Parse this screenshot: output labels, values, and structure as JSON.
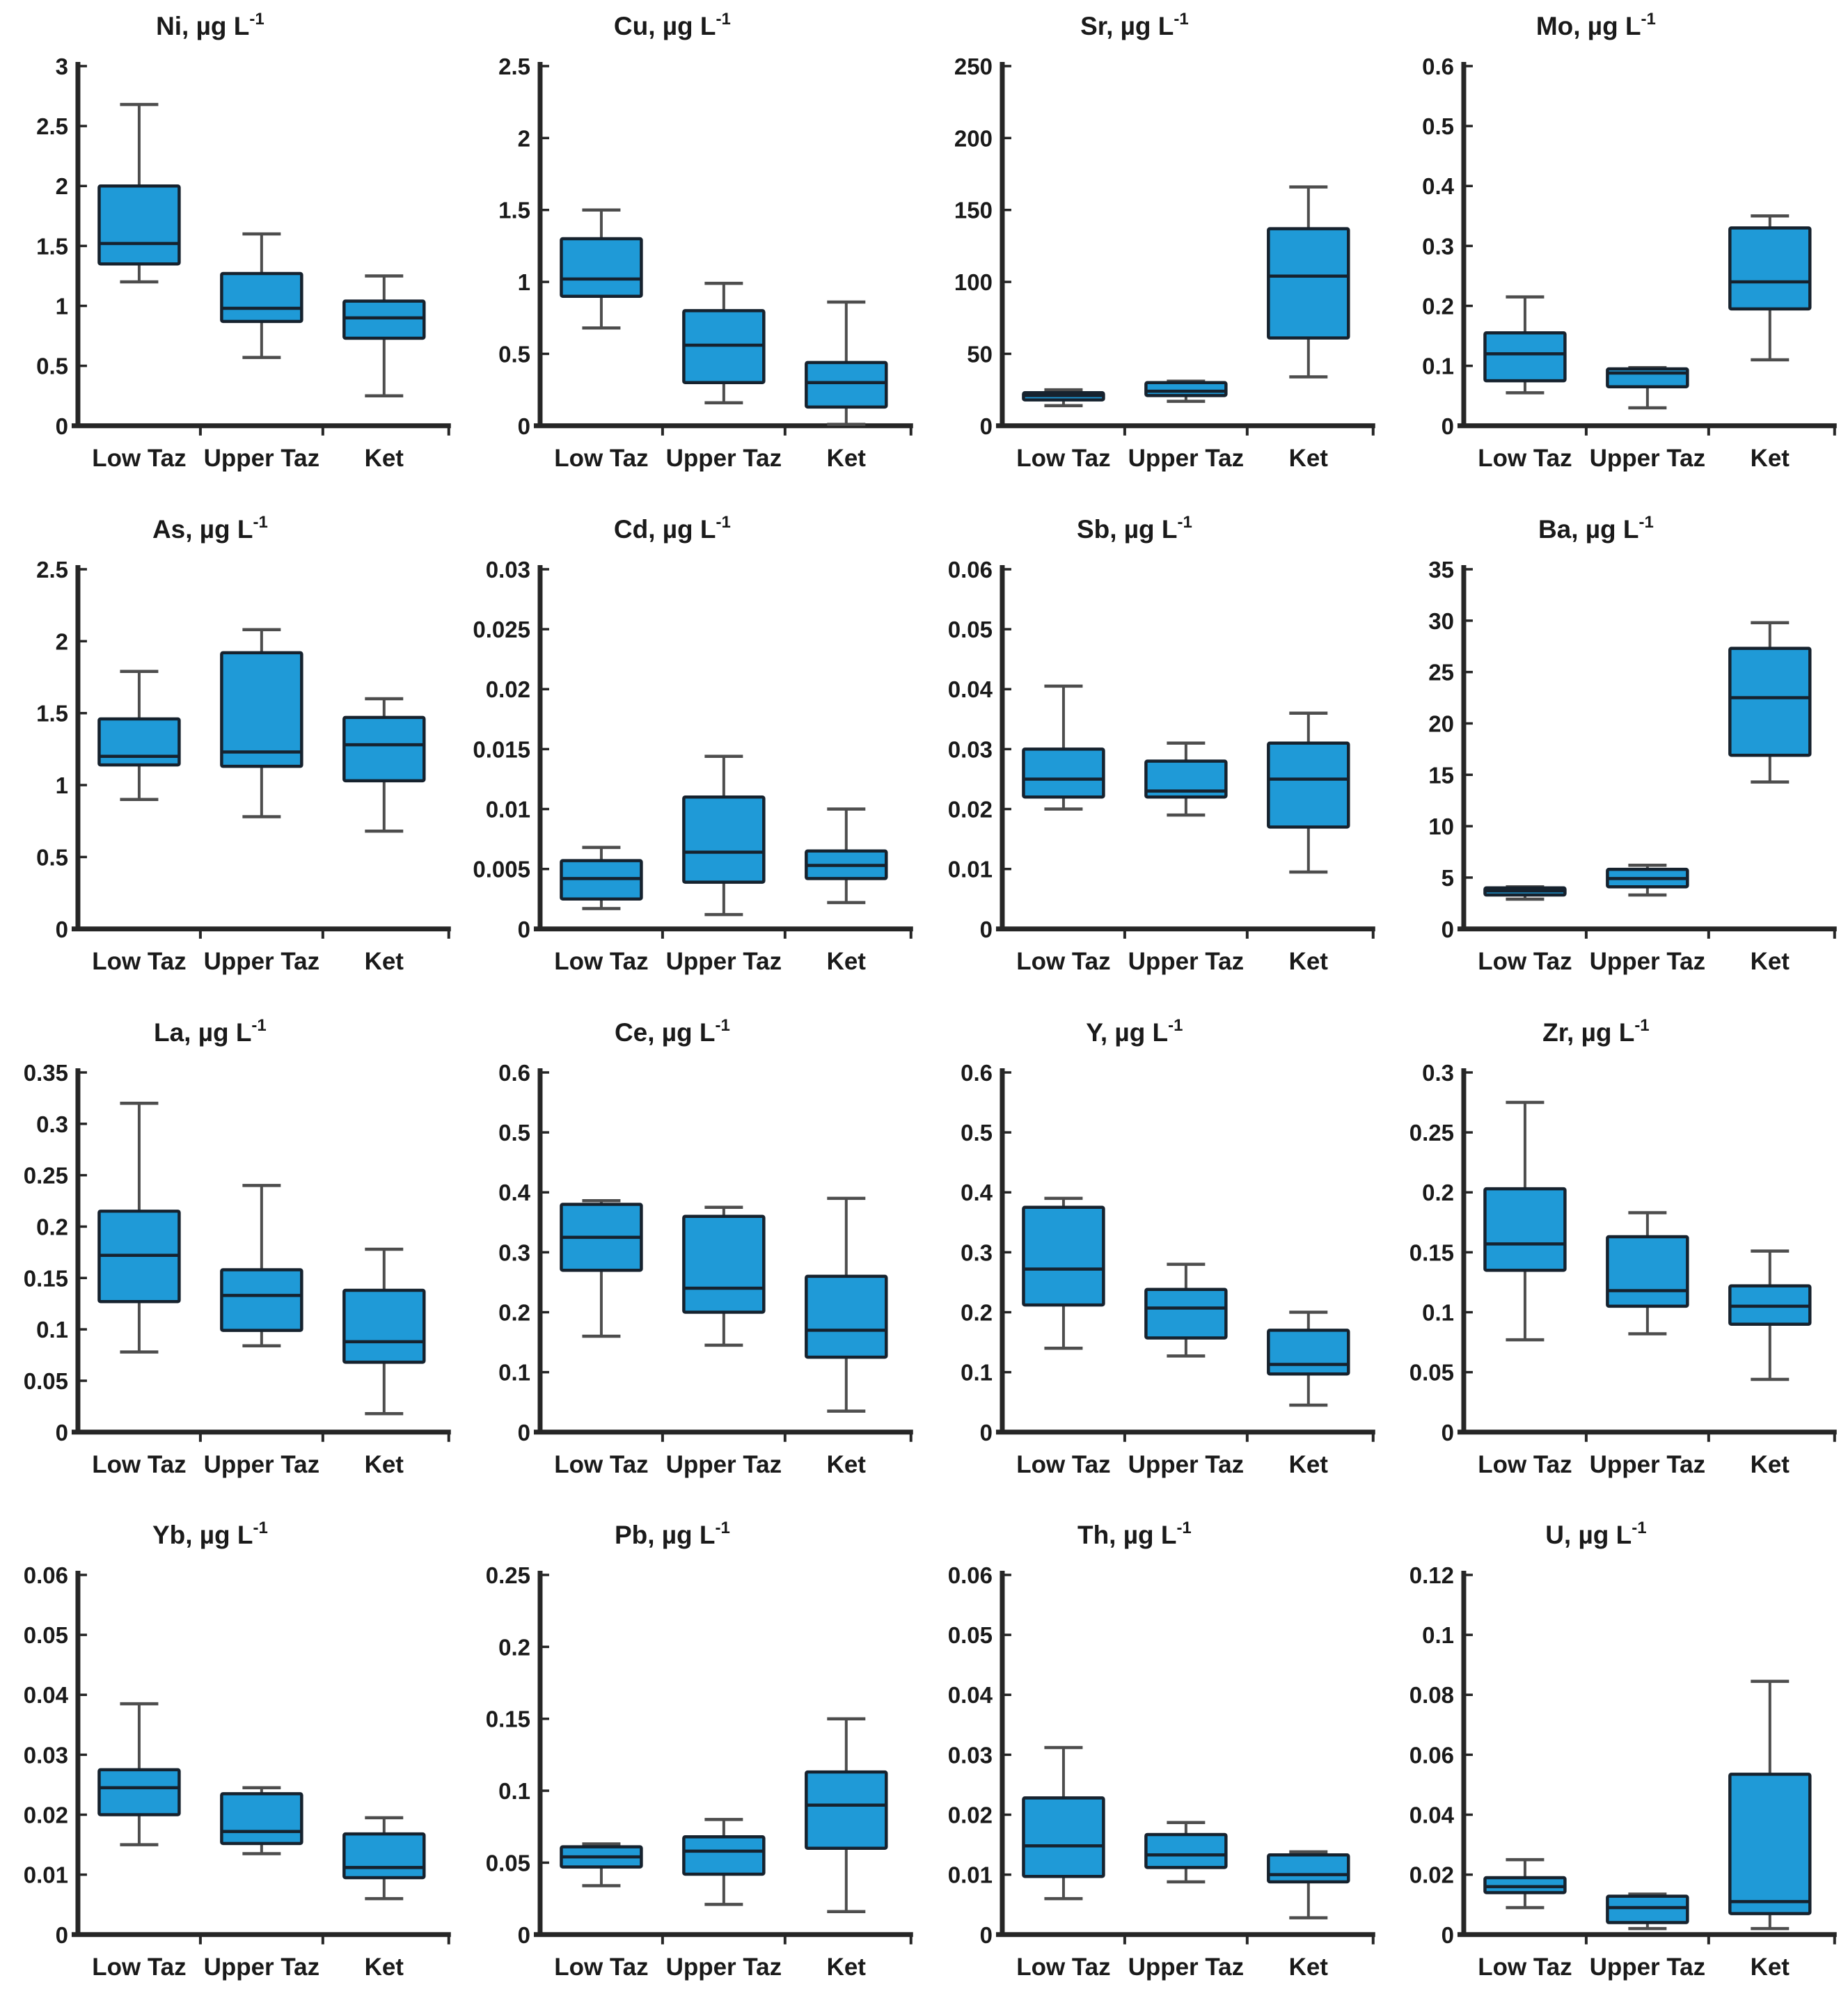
{
  "figure": {
    "description": "4x4 grid of box-and-whisker plots of trace element concentrations for three river stations",
    "unit": "µg L⁻¹",
    "categories": [
      "Low Taz",
      "Upper Taz",
      "Ket"
    ]
  },
  "style": {
    "box_fill": "#1f9ad7",
    "box_stroke": "#16222e",
    "median_stroke": "#16222e",
    "whisker_stroke": "#4d4d4d",
    "axis_stroke": "#262626",
    "text_color": "#1a1a1a",
    "background": "#ffffff"
  },
  "chart_data": [
    {
      "type": "box",
      "element": "Ni",
      "title": "Ni, µg L⁻¹",
      "title_main": "Ni, µg L",
      "title_sup": "-1",
      "categories": [
        "Low Taz",
        "Upper Taz",
        "Ket"
      ],
      "ylim": [
        0,
        3
      ],
      "yticks": [
        0,
        0.5,
        1,
        1.5,
        2,
        2.5,
        3
      ],
      "boxes": [
        {
          "category": "Low Taz",
          "whisker_low": 1.2,
          "q1": 1.35,
          "median": 1.52,
          "q3": 2.0,
          "whisker_high": 2.68
        },
        {
          "category": "Upper Taz",
          "whisker_low": 0.57,
          "q1": 0.87,
          "median": 0.98,
          "q3": 1.27,
          "whisker_high": 1.6
        },
        {
          "category": "Ket",
          "whisker_low": 0.25,
          "q1": 0.73,
          "median": 0.9,
          "q3": 1.04,
          "whisker_high": 1.25
        }
      ]
    },
    {
      "type": "box",
      "element": "Cu",
      "title": "Cu, µg L⁻¹",
      "title_main": "Cu, µg L",
      "title_sup": "-1",
      "categories": [
        "Low Taz",
        "Upper Taz",
        "Ket"
      ],
      "ylim": [
        0,
        2.5
      ],
      "yticks": [
        0,
        0.5,
        1,
        1.5,
        2,
        2.5
      ],
      "boxes": [
        {
          "category": "Low Taz",
          "whisker_low": 0.68,
          "q1": 0.9,
          "median": 1.02,
          "q3": 1.3,
          "whisker_high": 1.5
        },
        {
          "category": "Upper Taz",
          "whisker_low": 0.16,
          "q1": 0.3,
          "median": 0.56,
          "q3": 0.8,
          "whisker_high": 0.99
        },
        {
          "category": "Ket",
          "whisker_low": 0.01,
          "q1": 0.13,
          "median": 0.3,
          "q3": 0.44,
          "whisker_high": 0.86
        }
      ]
    },
    {
      "type": "box",
      "element": "Sr",
      "title": "Sr, µg L⁻¹",
      "title_main": "Sr, µg L",
      "title_sup": "-1",
      "categories": [
        "Low Taz",
        "Upper Taz",
        "Ket"
      ],
      "ylim": [
        0,
        250
      ],
      "yticks": [
        0,
        50,
        100,
        150,
        200,
        250
      ],
      "boxes": [
        {
          "category": "Low Taz",
          "whisker_low": 14,
          "q1": 18,
          "median": 21,
          "q3": 23,
          "whisker_high": 25
        },
        {
          "category": "Upper Taz",
          "whisker_low": 17,
          "q1": 21,
          "median": 24,
          "q3": 30,
          "whisker_high": 31
        },
        {
          "category": "Ket",
          "whisker_low": 34,
          "q1": 61,
          "median": 104,
          "q3": 137,
          "whisker_high": 166
        }
      ]
    },
    {
      "type": "box",
      "element": "Mo",
      "title": "Mo, µg L⁻¹",
      "title_main": "Mo, µg L",
      "title_sup": "-1",
      "categories": [
        "Low Taz",
        "Upper Taz",
        "Ket"
      ],
      "ylim": [
        0,
        0.6
      ],
      "yticks": [
        0,
        0.1,
        0.2,
        0.3,
        0.4,
        0.5,
        0.6
      ],
      "boxes": [
        {
          "category": "Low Taz",
          "whisker_low": 0.055,
          "q1": 0.075,
          "median": 0.12,
          "q3": 0.155,
          "whisker_high": 0.215
        },
        {
          "category": "Upper Taz",
          "whisker_low": 0.03,
          "q1": 0.065,
          "median": 0.088,
          "q3": 0.095,
          "whisker_high": 0.097
        },
        {
          "category": "Ket",
          "whisker_low": 0.11,
          "q1": 0.195,
          "median": 0.24,
          "q3": 0.33,
          "whisker_high": 0.35
        }
      ]
    },
    {
      "type": "box",
      "element": "As",
      "title": "As, µg L⁻¹",
      "title_main": "As, µg L",
      "title_sup": "-1",
      "categories": [
        "Low Taz",
        "Upper Taz",
        "Ket"
      ],
      "ylim": [
        0,
        2.5
      ],
      "yticks": [
        0,
        0.5,
        1,
        1.5,
        2,
        2.5
      ],
      "boxes": [
        {
          "category": "Low Taz",
          "whisker_low": 0.9,
          "q1": 1.14,
          "median": 1.2,
          "q3": 1.46,
          "whisker_high": 1.79
        },
        {
          "category": "Upper Taz",
          "whisker_low": 0.78,
          "q1": 1.13,
          "median": 1.23,
          "q3": 1.92,
          "whisker_high": 2.08
        },
        {
          "category": "Ket",
          "whisker_low": 0.68,
          "q1": 1.03,
          "median": 1.28,
          "q3": 1.47,
          "whisker_high": 1.6
        }
      ]
    },
    {
      "type": "box",
      "element": "Cd",
      "title": "Cd, µg L⁻¹",
      "title_main": "Cd, µg L",
      "title_sup": "-1",
      "categories": [
        "Low Taz",
        "Upper Taz",
        "Ket"
      ],
      "ylim": [
        0,
        0.03
      ],
      "yticks": [
        0,
        0.005,
        0.01,
        0.015,
        0.02,
        0.025,
        0.03
      ],
      "boxes": [
        {
          "category": "Low Taz",
          "whisker_low": 0.0017,
          "q1": 0.0025,
          "median": 0.0042,
          "q3": 0.0057,
          "whisker_high": 0.0068
        },
        {
          "category": "Upper Taz",
          "whisker_low": 0.0012,
          "q1": 0.0039,
          "median": 0.0064,
          "q3": 0.011,
          "whisker_high": 0.0144
        },
        {
          "category": "Ket",
          "whisker_low": 0.0022,
          "q1": 0.0042,
          "median": 0.0053,
          "q3": 0.0065,
          "whisker_high": 0.01
        }
      ]
    },
    {
      "type": "box",
      "element": "Sb",
      "title": "Sb, µg L⁻¹",
      "title_main": "Sb, µg L",
      "title_sup": "-1",
      "categories": [
        "Low Taz",
        "Upper Taz",
        "Ket"
      ],
      "ylim": [
        0,
        0.06
      ],
      "yticks": [
        0,
        0.01,
        0.02,
        0.03,
        0.04,
        0.05,
        0.06
      ],
      "boxes": [
        {
          "category": "Low Taz",
          "whisker_low": 0.02,
          "q1": 0.022,
          "median": 0.025,
          "q3": 0.03,
          "whisker_high": 0.0405
        },
        {
          "category": "Upper Taz",
          "whisker_low": 0.019,
          "q1": 0.022,
          "median": 0.023,
          "q3": 0.028,
          "whisker_high": 0.031
        },
        {
          "category": "Ket",
          "whisker_low": 0.0095,
          "q1": 0.017,
          "median": 0.025,
          "q3": 0.031,
          "whisker_high": 0.036
        }
      ]
    },
    {
      "type": "box",
      "element": "Ba",
      "title": "Ba, µg L⁻¹",
      "title_main": "Ba, µg L",
      "title_sup": "-1",
      "categories": [
        "Low Taz",
        "Upper Taz",
        "Ket"
      ],
      "ylim": [
        0,
        35
      ],
      "yticks": [
        0,
        5,
        10,
        15,
        20,
        25,
        30,
        35
      ],
      "boxes": [
        {
          "category": "Low Taz",
          "whisker_low": 2.9,
          "q1": 3.3,
          "median": 3.7,
          "q3": 4.0,
          "whisker_high": 4.1
        },
        {
          "category": "Upper Taz",
          "whisker_low": 3.3,
          "q1": 4.1,
          "median": 4.9,
          "q3": 5.8,
          "whisker_high": 6.2
        },
        {
          "category": "Ket",
          "whisker_low": 14.3,
          "q1": 16.9,
          "median": 22.5,
          "q3": 27.3,
          "whisker_high": 29.8
        }
      ]
    },
    {
      "type": "box",
      "element": "La",
      "title": "La, µg L⁻¹",
      "title_main": "La, µg L",
      "title_sup": "-1",
      "categories": [
        "Low Taz",
        "Upper Taz",
        "Ket"
      ],
      "ylim": [
        0,
        0.35
      ],
      "yticks": [
        0,
        0.05,
        0.1,
        0.15,
        0.2,
        0.25,
        0.3,
        0.35
      ],
      "boxes": [
        {
          "category": "Low Taz",
          "whisker_low": 0.078,
          "q1": 0.127,
          "median": 0.172,
          "q3": 0.215,
          "whisker_high": 0.32
        },
        {
          "category": "Upper Taz",
          "whisker_low": 0.084,
          "q1": 0.099,
          "median": 0.133,
          "q3": 0.158,
          "whisker_high": 0.24
        },
        {
          "category": "Ket",
          "whisker_low": 0.018,
          "q1": 0.068,
          "median": 0.088,
          "q3": 0.138,
          "whisker_high": 0.178
        }
      ]
    },
    {
      "type": "box",
      "element": "Ce",
      "title": "Ce, µg L⁻¹",
      "title_main": "Ce, µg L",
      "title_sup": "-1",
      "categories": [
        "Low Taz",
        "Upper Taz",
        "Ket"
      ],
      "ylim": [
        0,
        0.6
      ],
      "yticks": [
        0,
        0.1,
        0.2,
        0.3,
        0.4,
        0.5,
        0.6
      ],
      "boxes": [
        {
          "category": "Low Taz",
          "whisker_low": 0.16,
          "q1": 0.27,
          "median": 0.325,
          "q3": 0.38,
          "whisker_high": 0.386
        },
        {
          "category": "Upper Taz",
          "whisker_low": 0.145,
          "q1": 0.2,
          "median": 0.24,
          "q3": 0.36,
          "whisker_high": 0.375
        },
        {
          "category": "Ket",
          "whisker_low": 0.035,
          "q1": 0.125,
          "median": 0.17,
          "q3": 0.26,
          "whisker_high": 0.39
        }
      ]
    },
    {
      "type": "box",
      "element": "Y",
      "title": "Y, µg L⁻¹",
      "title_main": "Y, µg L",
      "title_sup": "-1",
      "categories": [
        "Low Taz",
        "Upper Taz",
        "Ket"
      ],
      "ylim": [
        0,
        0.6
      ],
      "yticks": [
        0,
        0.1,
        0.2,
        0.3,
        0.4,
        0.5,
        0.6
      ],
      "boxes": [
        {
          "category": "Low Taz",
          "whisker_low": 0.14,
          "q1": 0.212,
          "median": 0.272,
          "q3": 0.375,
          "whisker_high": 0.39
        },
        {
          "category": "Upper Taz",
          "whisker_low": 0.127,
          "q1": 0.157,
          "median": 0.207,
          "q3": 0.238,
          "whisker_high": 0.28
        },
        {
          "category": "Ket",
          "whisker_low": 0.045,
          "q1": 0.097,
          "median": 0.113,
          "q3": 0.17,
          "whisker_high": 0.2
        }
      ]
    },
    {
      "type": "box",
      "element": "Zr",
      "title": "Zr, µg L⁻¹",
      "title_main": "Zr, µg L",
      "title_sup": "-1",
      "categories": [
        "Low Taz",
        "Upper Taz",
        "Ket"
      ],
      "ylim": [
        0,
        0.3
      ],
      "yticks": [
        0,
        0.05,
        0.1,
        0.15,
        0.2,
        0.25,
        0.3
      ],
      "boxes": [
        {
          "category": "Low Taz",
          "whisker_low": 0.077,
          "q1": 0.135,
          "median": 0.157,
          "q3": 0.203,
          "whisker_high": 0.275
        },
        {
          "category": "Upper Taz",
          "whisker_low": 0.082,
          "q1": 0.105,
          "median": 0.118,
          "q3": 0.163,
          "whisker_high": 0.183
        },
        {
          "category": "Ket",
          "whisker_low": 0.044,
          "q1": 0.09,
          "median": 0.105,
          "q3": 0.122,
          "whisker_high": 0.151
        }
      ]
    },
    {
      "type": "box",
      "element": "Yb",
      "title": "Yb, µg L⁻¹",
      "title_main": "Yb, µg L",
      "title_sup": "-1",
      "categories": [
        "Low Taz",
        "Upper Taz",
        "Ket"
      ],
      "ylim": [
        0,
        0.06
      ],
      "yticks": [
        0,
        0.01,
        0.02,
        0.03,
        0.04,
        0.05,
        0.06
      ],
      "boxes": [
        {
          "category": "Low Taz",
          "whisker_low": 0.015,
          "q1": 0.02,
          "median": 0.0245,
          "q3": 0.0275,
          "whisker_high": 0.0385
        },
        {
          "category": "Upper Taz",
          "whisker_low": 0.0135,
          "q1": 0.0152,
          "median": 0.0172,
          "q3": 0.0235,
          "whisker_high": 0.0245
        },
        {
          "category": "Ket",
          "whisker_low": 0.006,
          "q1": 0.0095,
          "median": 0.0112,
          "q3": 0.0168,
          "whisker_high": 0.0195
        }
      ]
    },
    {
      "type": "box",
      "element": "Pb",
      "title": "Pb, µg L⁻¹",
      "title_main": "Pb, µg L",
      "title_sup": "-1",
      "categories": [
        "Low Taz",
        "Upper Taz",
        "Ket"
      ],
      "ylim": [
        0,
        0.25
      ],
      "yticks": [
        0,
        0.05,
        0.1,
        0.15,
        0.2,
        0.25
      ],
      "boxes": [
        {
          "category": "Low Taz",
          "whisker_low": 0.034,
          "q1": 0.047,
          "median": 0.054,
          "q3": 0.061,
          "whisker_high": 0.063
        },
        {
          "category": "Upper Taz",
          "whisker_low": 0.021,
          "q1": 0.042,
          "median": 0.058,
          "q3": 0.068,
          "whisker_high": 0.08
        },
        {
          "category": "Ket",
          "whisker_low": 0.016,
          "q1": 0.06,
          "median": 0.09,
          "q3": 0.113,
          "whisker_high": 0.15
        }
      ]
    },
    {
      "type": "box",
      "element": "Th",
      "title": "Th, µg L⁻¹",
      "title_main": "Th, µg L",
      "title_sup": "-1",
      "categories": [
        "Low Taz",
        "Upper Taz",
        "Ket"
      ],
      "ylim": [
        0,
        0.06
      ],
      "yticks": [
        0,
        0.01,
        0.02,
        0.03,
        0.04,
        0.05,
        0.06
      ],
      "boxes": [
        {
          "category": "Low Taz",
          "whisker_low": 0.006,
          "q1": 0.0097,
          "median": 0.0148,
          "q3": 0.0228,
          "whisker_high": 0.0312
        },
        {
          "category": "Upper Taz",
          "whisker_low": 0.0088,
          "q1": 0.0112,
          "median": 0.0133,
          "q3": 0.0167,
          "whisker_high": 0.0187
        },
        {
          "category": "Ket",
          "whisker_low": 0.0028,
          "q1": 0.0088,
          "median": 0.01,
          "q3": 0.0133,
          "whisker_high": 0.0138
        }
      ]
    },
    {
      "type": "box",
      "element": "U",
      "title": "U, µg L⁻¹",
      "title_main": "U, µg L",
      "title_sup": "-1",
      "categories": [
        "Low Taz",
        "Upper Taz",
        "Ket"
      ],
      "ylim": [
        0,
        0.12
      ],
      "yticks": [
        0,
        0.02,
        0.04,
        0.06,
        0.08,
        0.1,
        0.12
      ],
      "boxes": [
        {
          "category": "Low Taz",
          "whisker_low": 0.009,
          "q1": 0.014,
          "median": 0.016,
          "q3": 0.019,
          "whisker_high": 0.025
        },
        {
          "category": "Upper Taz",
          "whisker_low": 0.002,
          "q1": 0.004,
          "median": 0.009,
          "q3": 0.0128,
          "whisker_high": 0.0135
        },
        {
          "category": "Ket",
          "whisker_low": 0.002,
          "q1": 0.007,
          "median": 0.011,
          "q3": 0.0535,
          "whisker_high": 0.0845
        }
      ]
    }
  ]
}
